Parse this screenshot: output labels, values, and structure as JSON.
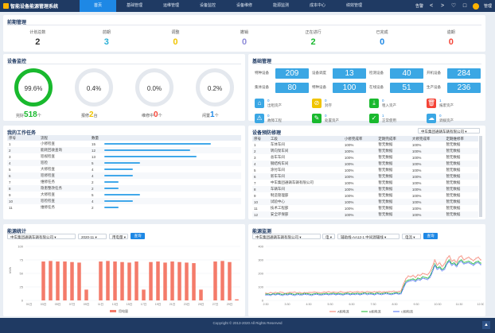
{
  "app": {
    "title": "智能设备能源管理系统"
  },
  "nav": [
    "首页",
    "基础管理",
    "运维管理",
    "设备监控",
    "设备维修",
    "能源监测",
    "成本中心",
    "绩效管理"
  ],
  "header": {
    "more_label": "告警",
    "prev": "<",
    "next": ">",
    "user": "管理"
  },
  "pre_manage": {
    "title": "前期管理",
    "stats": [
      {
        "label": "计划总数",
        "value": "2",
        "color": "#333333"
      },
      {
        "label": "前期",
        "value": "3",
        "color": "#2ab0d6"
      },
      {
        "label": "调整",
        "value": "0",
        "color": "#f0c400"
      },
      {
        "label": "撤销",
        "value": "0",
        "color": "#8e8bd9"
      },
      {
        "label": "正在进行",
        "value": "2",
        "color": "#19b92e"
      },
      {
        "label": "已完成",
        "value": "0",
        "color": "#1e88e5"
      },
      {
        "label": "逾期",
        "value": "0",
        "color": "#f44336"
      }
    ]
  },
  "monitor": {
    "title": "设备监控",
    "gauges": [
      {
        "value": "99.6%",
        "caption": "完好",
        "count": "518",
        "unit": "个",
        "count_color": "#19b92e"
      },
      {
        "value": "0.4%",
        "caption": "报修",
        "count": "2",
        "unit": "台",
        "count_color": "#f0c400"
      },
      {
        "value": "0.0%",
        "caption": "维修中",
        "count": "0",
        "unit": "个",
        "count_color": "#f44336"
      },
      {
        "value": "0.2%",
        "caption": "闲置",
        "count": "1",
        "unit": "个",
        "count_color": "#1e88e5"
      }
    ]
  },
  "basic": {
    "title": "基础管理",
    "tiles": [
      {
        "label": "特种设备",
        "value": "209"
      },
      {
        "label": "设备调度",
        "value": "13"
      },
      {
        "label": "检测设备",
        "value": "40"
      },
      {
        "label": "开机设备",
        "value": "284"
      },
      {
        "label": "集体设备",
        "value": "80"
      },
      {
        "label": "特种设备",
        "value": "100"
      },
      {
        "label": "在线设备",
        "value": "51"
      },
      {
        "label": "生产设备",
        "value": "236"
      }
    ],
    "icons": [
      {
        "icon": "house",
        "num": "0",
        "label": "出租资产",
        "color": "#3ba7e4"
      },
      {
        "icon": "ban",
        "num": "0",
        "label": "封存",
        "color": "#f0c400"
      },
      {
        "icon": "download",
        "num": "0",
        "label": "租入资产",
        "color": "#19b92e"
      },
      {
        "icon": "trash",
        "num": "1",
        "label": "报废资产",
        "color": "#f44336"
      },
      {
        "icon": "warning",
        "num": "0",
        "label": "故障工程",
        "color": "#3ba7e4"
      },
      {
        "icon": "pen",
        "num": "0",
        "label": "处置资产",
        "color": "#19b92e"
      },
      {
        "icon": "check",
        "num": "1",
        "label": "正常使用",
        "color": "#19b92e"
      },
      {
        "icon": "cloud",
        "num": "0",
        "label": "调拨资产",
        "color": "#3ba7e4"
      }
    ]
  },
  "tasks": {
    "title": "我的工作任务",
    "headers": [
      "序号",
      "流程",
      "数量"
    ],
    "rows": [
      {
        "no": "1",
        "name": "小修检查",
        "count": "15",
        "pct": 0.96
      },
      {
        "no": "2",
        "name": "能耗回收查询",
        "count": "12",
        "pct": 0.77
      },
      {
        "no": "3",
        "name": "巡视检查",
        "count": "13",
        "pct": 0.83
      },
      {
        "no": "4",
        "name": "巡检",
        "count": "5",
        "pct": 0.32
      },
      {
        "no": "5",
        "name": "大修检查",
        "count": "4",
        "pct": 0.26
      },
      {
        "no": "6",
        "name": "巡修检查",
        "count": "4",
        "pct": 0.26
      },
      {
        "no": "7",
        "name": "维修任务",
        "count": "2",
        "pct": 0.13
      },
      {
        "no": "8",
        "name": "隐患整改任务",
        "count": "2",
        "pct": 0.13
      },
      {
        "no": "9",
        "name": "大修检查",
        "count": "5",
        "pct": 0.32
      },
      {
        "no": "10",
        "name": "巡检检查",
        "count": "4",
        "pct": 0.26
      },
      {
        "no": "11",
        "name": "维修任务",
        "count": "2",
        "pct": 0.13
      }
    ]
  },
  "warning": {
    "title": "设备预防修理",
    "company": "中车集团通辆车辆有限公司",
    "headers": [
      "序号",
      "工段",
      "小修完成率",
      "定期完成率",
      "大修完成率",
      "定期维修率"
    ],
    "rows": [
      [
        "1",
        "车体车间",
        "100%",
        "暂无数据",
        "100%",
        "暂无数据"
      ],
      [
        "2",
        "转向架车间",
        "100%",
        "暂无数据",
        "100%",
        "暂无数据"
      ],
      [
        "3",
        "总车车间",
        "100%",
        "暂无数据",
        "100%",
        "暂无数据"
      ],
      [
        "4",
        "钢结构车间",
        "100%",
        "暂无数据",
        "100%",
        "暂无数据"
      ],
      [
        "5",
        "涂付车间",
        "100%",
        "暂无数据",
        "100%",
        "暂无数据"
      ],
      [
        "6",
        "新车车间",
        "100%",
        "暂无数据",
        "100%",
        "暂无数据"
      ],
      [
        "7",
        "中车集团通辆车辆有限公司",
        "100%",
        "暂无数据",
        "100%",
        "暂无数据"
      ],
      [
        "8",
        "车辆车间",
        "100%",
        "暂无数据",
        "100%",
        "暂无数据"
      ],
      [
        "9",
        "制造管理部",
        "100%",
        "暂无数据",
        "100%",
        "暂无数据"
      ],
      [
        "10",
        "试验中心",
        "100%",
        "暂无数据",
        "100%",
        "暂无数据"
      ],
      [
        "11",
        "技术工程部",
        "100%",
        "暂无数据",
        "100%",
        "暂无数据"
      ],
      [
        "12",
        "安全环保部",
        "100%",
        "暂无数据",
        "100%",
        "暂无数据"
      ]
    ]
  },
  "energy_stat": {
    "title": "能源统计",
    "company": "中车集团通辆车辆有限公司",
    "month": "2020-11",
    "type": "用电量",
    "query_label": "查询"
  },
  "energy_monitor": {
    "title": "能源监测",
    "company": "中车集团通辆车辆有限公司",
    "meter": "电",
    "point": "辅助线-AA12-1 中间源辅线",
    "type": "电流",
    "query_label": "查询"
  },
  "footer": {
    "text": "Copyright © 2013-2020 All Rights Reserved"
  },
  "chart_data": [
    {
      "type": "bar",
      "title": "",
      "ylabel": "kWh",
      "ylim": [
        0,
        100
      ],
      "yticks": [
        "0",
        "25",
        "50",
        "75",
        "100"
      ],
      "categories": [
        "01日",
        "02日",
        "03日",
        "04日",
        "05日",
        "06日",
        "07日",
        "08日",
        "09日",
        "10日",
        "11日",
        "12日",
        "13日",
        "14日",
        "15日",
        "16日",
        "17日",
        "18日",
        "19日",
        "20日",
        "21日",
        "22日",
        "23日",
        "24日",
        "25日",
        "26日",
        "27日",
        "28日",
        "29日",
        "30日"
      ],
      "xticks": [
        "01日",
        "03日",
        "05日",
        "07日",
        "09日",
        "11日",
        "13日",
        "15日",
        "17日",
        "19日",
        "21日",
        "23日",
        "25日",
        "27日",
        "29日"
      ],
      "series": [
        {
          "name": "用电量",
          "color": "#f47b6a",
          "values": [
            0,
            0,
            72,
            73,
            72,
            72,
            71,
            70,
            20,
            0,
            72,
            73,
            72,
            71,
            70,
            72,
            20,
            71,
            72,
            70,
            72,
            71,
            70,
            69,
            20,
            0,
            72,
            73,
            71,
            2
          ]
        }
      ]
    },
    {
      "type": "line",
      "title": "",
      "ylim": [
        0,
        400
      ],
      "yticks": [
        "0",
        "100",
        "200",
        "300",
        "400"
      ],
      "xticks": [
        "2:30",
        "3:30",
        "4:30",
        "5:30",
        "6:30",
        "7:30",
        "8:30",
        "9:30",
        "10:30",
        "11:30",
        "12:30"
      ],
      "series": [
        {
          "name": "A相电流",
          "color": "#f47b6a",
          "values": [
            55,
            50,
            58,
            52,
            60,
            55,
            62,
            58,
            50,
            56,
            60,
            58,
            62,
            55,
            60,
            52,
            58,
            56,
            60,
            58,
            62,
            60,
            58,
            56,
            62,
            60,
            64,
            58,
            62,
            60,
            58,
            66,
            60,
            58,
            62,
            64,
            60,
            62,
            66,
            60,
            64,
            58,
            66,
            62,
            60,
            64,
            62,
            66,
            60,
            64,
            62,
            66,
            64,
            68,
            62,
            66,
            70,
            120,
            160,
            180,
            175,
            185,
            170,
            190,
            185,
            200,
            195,
            190,
            210,
            250,
            300,
            260,
            280,
            250,
            270,
            310,
            330,
            290,
            300,
            280,
            320,
            330,
            300,
            310,
            320,
            305,
            295,
            310,
            320,
            300
          ]
        },
        {
          "name": "B相电流",
          "color": "#19b92e",
          "values": [
            45,
            48,
            42,
            50,
            46,
            52,
            48,
            44,
            50,
            46,
            52,
            48,
            44,
            50,
            48,
            46,
            52,
            50,
            48,
            44,
            50,
            52,
            48,
            46,
            50,
            52,
            48,
            50,
            54,
            48,
            52,
            50,
            46,
            52,
            54,
            48,
            52,
            50,
            54,
            48,
            52,
            56,
            50,
            54,
            52,
            48,
            56,
            52,
            50,
            54,
            56,
            52,
            50,
            54,
            58,
            52,
            56,
            100,
            140,
            150,
            155,
            160,
            150,
            165,
            160,
            175,
            170,
            165,
            180,
            220,
            270,
            240,
            250,
            230,
            240,
            280,
            300,
            270,
            280,
            260,
            290,
            300,
            280,
            285,
            290,
            280,
            270,
            285,
            290,
            275
          ]
        },
        {
          "name": "C相电流",
          "color": "#4a6cf7",
          "values": [
            40,
            42,
            38,
            45,
            40,
            46,
            42,
            38,
            44,
            40,
            46,
            42,
            38,
            44,
            42,
            40,
            46,
            44,
            42,
            38,
            44,
            46,
            42,
            40,
            44,
            46,
            42,
            44,
            48,
            42,
            46,
            44,
            40,
            46,
            48,
            42,
            46,
            44,
            48,
            42,
            46,
            50,
            44,
            48,
            46,
            42,
            50,
            46,
            44,
            48,
            50,
            46,
            44,
            48,
            52,
            46,
            50,
            90,
            130,
            140,
            145,
            150,
            140,
            155,
            150,
            165,
            160,
            155,
            170,
            210,
            260,
            230,
            240,
            220,
            230,
            270,
            290,
            260,
            270,
            250,
            280,
            290,
            270,
            275,
            280,
            270,
            260,
            275,
            280,
            265
          ]
        }
      ]
    }
  ]
}
